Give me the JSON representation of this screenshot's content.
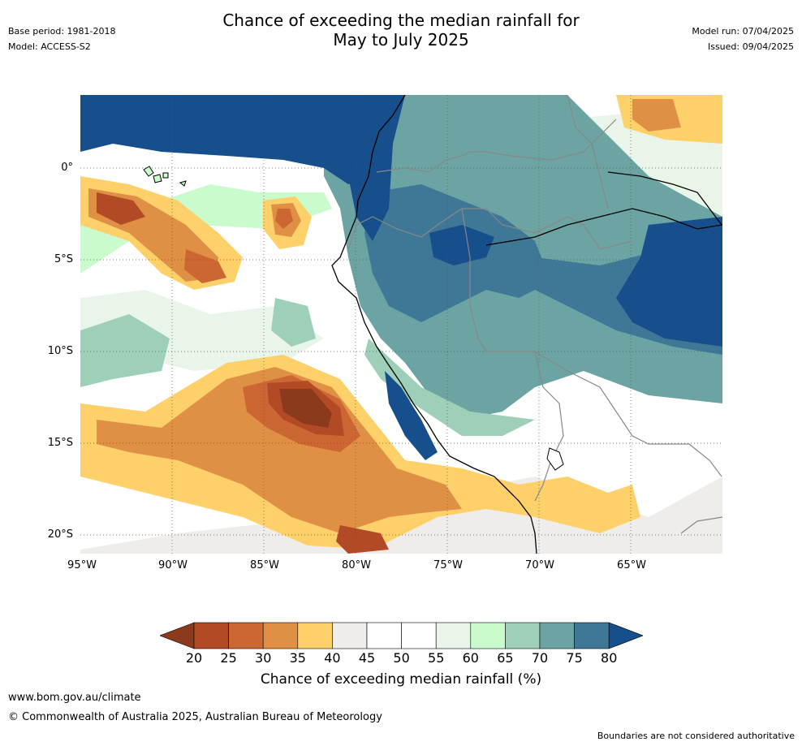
{
  "header": {
    "title_line1": "Chance of exceeding the median rainfall for",
    "title_line2": "May to July 2025",
    "base_period": "Base period: 1981-2018",
    "model": "Model: ACCESS-S2",
    "model_run": "Model run: 07/04/2025",
    "issued": "Issued: 09/04/2025"
  },
  "map": {
    "lat_labels": [
      "0°",
      "5°S",
      "10°S",
      "15°S",
      "20°S"
    ],
    "lon_labels": [
      "95°W",
      "90°W",
      "85°W",
      "80°W",
      "75°W",
      "70°W",
      "65°W"
    ]
  },
  "colorbar": {
    "ticks": [
      "20",
      "25",
      "30",
      "35",
      "40",
      "45",
      "50",
      "55",
      "60",
      "65",
      "70",
      "75",
      "80"
    ],
    "label": "Chance of exceeding median rainfall (%)",
    "colors": [
      "#8b3a1c",
      "#b34a26",
      "#cc6633",
      "#e09044",
      "#fdd06a",
      "#efedea",
      "#ffffff",
      "#ffffff",
      "#e9f5e9",
      "#c9fbcc",
      "#9ecfb8",
      "#6ca3a3",
      "#3f7797",
      "#164f8c"
    ]
  },
  "footer": {
    "site": "www.bom.gov.au/climate",
    "copyright": "© Commonwealth of Australia 2025, Australian Bureau of Meteorology",
    "disclaimer": "Boundaries are not considered authoritative"
  }
}
